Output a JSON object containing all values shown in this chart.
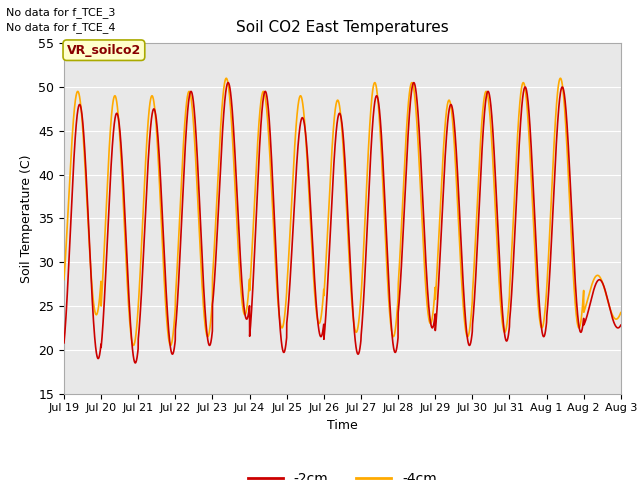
{
  "title": "Soil CO2 East Temperatures",
  "xlabel": "Time",
  "ylabel": "Soil Temperature (C)",
  "ylim": [
    15,
    55
  ],
  "background_color": "#e8e8e8",
  "line_2cm_color": "#cc0000",
  "line_4cm_color": "#ffaa00",
  "legend_entries": [
    "-2cm",
    "-4cm"
  ],
  "text_no_data_1": "No data for f_TCE_3",
  "text_no_data_2": "No data for f_TCE_4",
  "annotation_box_text": "VR_soilco2",
  "annotation_box_color": "#ffffcc",
  "annotation_box_edgecolor": "#aaaa00",
  "tick_labels": [
    "Jul 19",
    "Jul 20",
    "Jul 21",
    "Jul 22",
    "Jul 23",
    "Jul 24",
    "Jul 25",
    "Jul 26",
    "Jul 27",
    "Jul 28",
    "Jul 29",
    "Jul 30",
    "Jul 31",
    "Aug 1",
    "Aug 2",
    "Aug 3"
  ],
  "n_days": 15,
  "samples_per_day": 288,
  "minima_2cm": [
    19.0,
    18.5,
    19.5,
    20.5,
    23.5,
    19.7,
    21.5,
    19.5,
    19.7,
    22.5,
    20.5,
    21.0,
    21.5,
    22.0,
    22.5
  ],
  "maxima_2cm": [
    48.0,
    47.0,
    47.5,
    49.5,
    50.5,
    49.5,
    46.5,
    47.0,
    49.0,
    50.5,
    48.0,
    49.5,
    50.0,
    50.0,
    28.0
  ],
  "peak_phase_2cm": 0.42,
  "minima_4cm": [
    24.0,
    20.5,
    20.5,
    21.5,
    24.0,
    22.5,
    23.0,
    22.0,
    21.5,
    23.0,
    21.5,
    22.0,
    22.5,
    22.5,
    23.5
  ],
  "maxima_4cm": [
    49.5,
    49.0,
    49.0,
    49.5,
    51.0,
    49.5,
    49.0,
    48.5,
    50.5,
    50.5,
    48.5,
    49.5,
    50.5,
    51.0,
    28.5
  ],
  "peak_phase_4cm": 0.37,
  "grid_color": "#ffffff",
  "grid_linewidth": 0.8,
  "yticks": [
    15,
    20,
    25,
    30,
    35,
    40,
    45,
    50,
    55
  ]
}
